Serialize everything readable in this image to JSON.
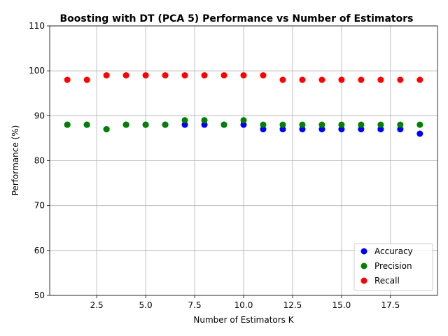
{
  "chart_data": {
    "type": "scatter",
    "title": "Boosting with DT (PCA 5) Performance vs Number of Estimators",
    "xlabel": "Number of Estimators K",
    "ylabel": "Performance (%)",
    "xlim": [
      0.1,
      19.9
    ],
    "ylim": [
      50,
      110
    ],
    "xticks": [
      2.5,
      5.0,
      7.5,
      10.0,
      12.5,
      15.0,
      17.5
    ],
    "xtick_labels": [
      "2.5",
      "5.0",
      "7.5",
      "10.0",
      "12.5",
      "15.0",
      "17.5"
    ],
    "yticks": [
      50,
      60,
      70,
      80,
      90,
      100,
      110
    ],
    "ytick_labels": [
      "50",
      "60",
      "70",
      "80",
      "90",
      "100",
      "110"
    ],
    "grid": true,
    "legend_position": "lower-right",
    "x": [
      1,
      2,
      3,
      4,
      5,
      6,
      7,
      8,
      9,
      10,
      11,
      12,
      13,
      14,
      15,
      16,
      17,
      18,
      19
    ],
    "series": [
      {
        "name": "Accuracy",
        "color": "#0000ff",
        "values": [
          88,
          88,
          87,
          88,
          88,
          88,
          88,
          88,
          88,
          88,
          87,
          87,
          87,
          87,
          87,
          87,
          87,
          87,
          86
        ]
      },
      {
        "name": "Precision",
        "color": "#008000",
        "values": [
          88,
          88,
          87,
          88,
          88,
          88,
          89,
          89,
          88,
          89,
          88,
          88,
          88,
          88,
          88,
          88,
          88,
          88,
          88
        ]
      },
      {
        "name": "Recall",
        "color": "#ff0000",
        "values": [
          98,
          98,
          99,
          99,
          99,
          99,
          99,
          99,
          99,
          99,
          99,
          98,
          98,
          98,
          98,
          98,
          98,
          98,
          98
        ]
      }
    ]
  }
}
